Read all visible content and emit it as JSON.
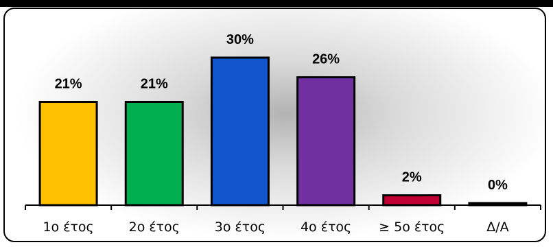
{
  "chart_data": {
    "type": "bar",
    "categories": [
      "1ο έτος",
      "2ο έτος",
      "3ο έτος",
      "4ο έτος",
      "≥ 5ο έτος",
      "Δ/Α"
    ],
    "values": [
      21,
      21,
      30,
      26,
      2,
      0
    ],
    "value_labels": [
      "21%",
      "21%",
      "30%",
      "26%",
      "2%",
      "0%"
    ],
    "colors": [
      "#FFC000",
      "#00B050",
      "#1155CC",
      "#7030A0",
      "#C00030",
      "#000000"
    ],
    "title": "",
    "xlabel": "",
    "ylabel": "",
    "ylim": [
      0,
      36
    ],
    "grid": false,
    "legend": "none"
  }
}
